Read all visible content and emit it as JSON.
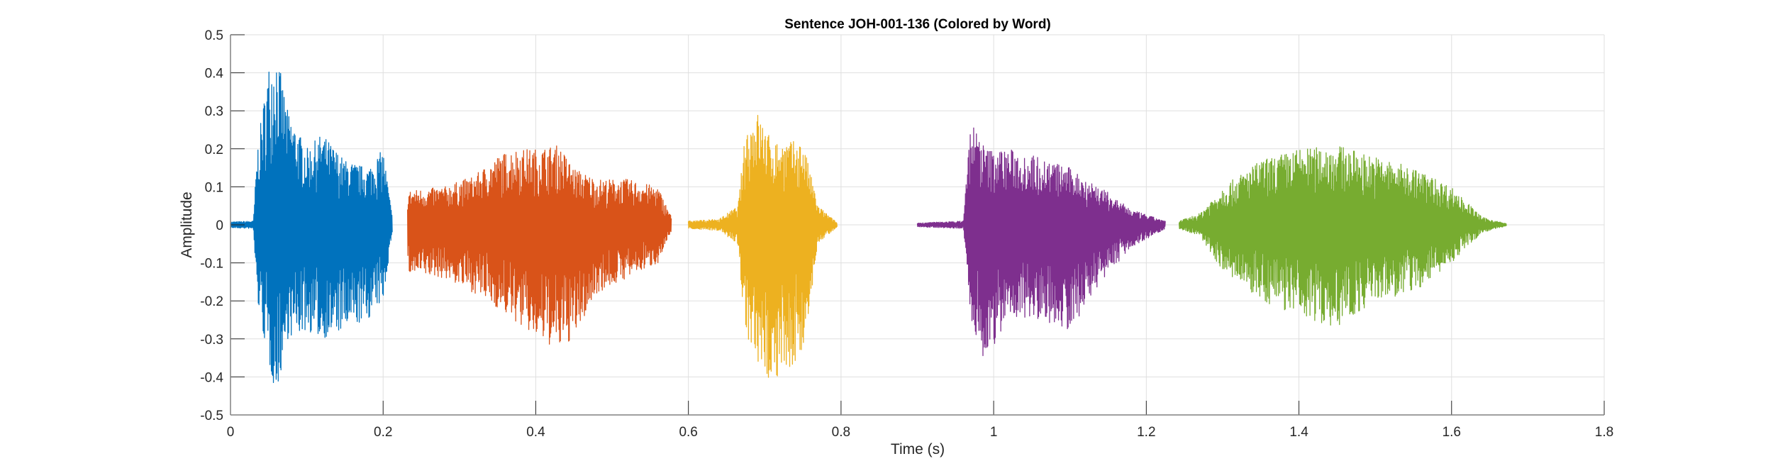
{
  "chart_data": {
    "type": "line",
    "title": "Sentence JOH-001-136 (Colored by Word)",
    "xlabel": "Time (s)",
    "ylabel": "Amplitude",
    "xlim": [
      0,
      1.8
    ],
    "ylim": [
      -0.5,
      0.5
    ],
    "xticks": [
      "0",
      "0.2",
      "0.4",
      "0.6",
      "0.8",
      "1",
      "1.2",
      "1.4",
      "1.6",
      "1.8"
    ],
    "yticks": [
      "-0.5",
      "-0.4",
      "-0.3",
      "-0.2",
      "-0.1",
      "0",
      "0.1",
      "0.2",
      "0.3",
      "0.4",
      "0.5"
    ],
    "grid": true,
    "legend": "none",
    "series": [
      {
        "color": "#0072BD",
        "envelope": [
          [
            0.0,
            0.008,
            -0.008
          ],
          [
            0.03,
            0.01,
            -0.01
          ],
          [
            0.035,
            0.2,
            -0.2
          ],
          [
            0.05,
            0.42,
            -0.37
          ],
          [
            0.06,
            0.46,
            -0.45
          ],
          [
            0.075,
            0.3,
            -0.3
          ],
          [
            0.1,
            0.2,
            -0.28
          ],
          [
            0.12,
            0.24,
            -0.3
          ],
          [
            0.15,
            0.17,
            -0.28
          ],
          [
            0.18,
            0.15,
            -0.25
          ],
          [
            0.2,
            0.2,
            -0.2
          ],
          [
            0.212,
            0.02,
            -0.02
          ]
        ]
      },
      {
        "color": "#D95319",
        "envelope": [
          [
            0.232,
            0.09,
            -0.13
          ],
          [
            0.28,
            0.1,
            -0.14
          ],
          [
            0.32,
            0.13,
            -0.18
          ],
          [
            0.35,
            0.18,
            -0.22
          ],
          [
            0.37,
            0.2,
            -0.25
          ],
          [
            0.4,
            0.2,
            -0.3
          ],
          [
            0.43,
            0.21,
            -0.33
          ],
          [
            0.45,
            0.15,
            -0.3
          ],
          [
            0.48,
            0.12,
            -0.18
          ],
          [
            0.52,
            0.12,
            -0.14
          ],
          [
            0.56,
            0.1,
            -0.1
          ],
          [
            0.578,
            0.02,
            -0.02
          ]
        ]
      },
      {
        "color": "#EDB120",
        "envelope": [
          [
            0.6,
            0.01,
            -0.01
          ],
          [
            0.64,
            0.015,
            -0.015
          ],
          [
            0.665,
            0.05,
            -0.05
          ],
          [
            0.675,
            0.25,
            -0.3
          ],
          [
            0.69,
            0.3,
            -0.4
          ],
          [
            0.71,
            0.22,
            -0.41
          ],
          [
            0.75,
            0.22,
            -0.35
          ],
          [
            0.77,
            0.05,
            -0.05
          ],
          [
            0.795,
            0.005,
            -0.005
          ]
        ]
      },
      {
        "color": "#7E2F8E",
        "envelope": [
          [
            0.9,
            0.005,
            -0.005
          ],
          [
            0.96,
            0.01,
            -0.01
          ],
          [
            0.97,
            0.28,
            -0.25
          ],
          [
            0.99,
            0.2,
            -0.37
          ],
          [
            1.02,
            0.2,
            -0.24
          ],
          [
            1.06,
            0.18,
            -0.25
          ],
          [
            1.1,
            0.15,
            -0.28
          ],
          [
            1.14,
            0.1,
            -0.15
          ],
          [
            1.18,
            0.04,
            -0.06
          ],
          [
            1.225,
            0.01,
            -0.01
          ]
        ]
      },
      {
        "color": "#77AC30",
        "envelope": [
          [
            1.243,
            0.01,
            -0.01
          ],
          [
            1.27,
            0.03,
            -0.03
          ],
          [
            1.3,
            0.1,
            -0.12
          ],
          [
            1.35,
            0.17,
            -0.2
          ],
          [
            1.4,
            0.2,
            -0.24
          ],
          [
            1.45,
            0.21,
            -0.27
          ],
          [
            1.5,
            0.18,
            -0.2
          ],
          [
            1.55,
            0.15,
            -0.18
          ],
          [
            1.6,
            0.1,
            -0.1
          ],
          [
            1.64,
            0.02,
            -0.02
          ],
          [
            1.672,
            0.003,
            -0.003
          ]
        ]
      }
    ]
  }
}
